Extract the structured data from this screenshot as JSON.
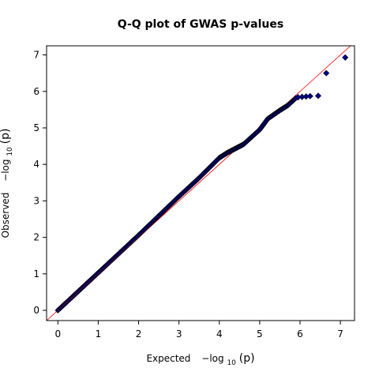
{
  "chart_data": {
    "type": "scatter",
    "title": "Q-Q plot of GWAS p-values",
    "xlabel_main": "Expected",
    "ylabel_main": "Observed",
    "math_prefix": "−log",
    "math_sub": "10",
    "math_arg": "(p)",
    "xlim": [
      -0.28,
      7.35
    ],
    "ylim": [
      -0.28,
      7.25
    ],
    "xticks": [
      0,
      1,
      2,
      3,
      4,
      5,
      6,
      7
    ],
    "yticks": [
      0,
      1,
      2,
      3,
      4,
      5,
      6,
      7
    ],
    "reference_line": {
      "slope": 1,
      "intercept": 0,
      "color": "#ff0000"
    },
    "point_color": "#00008b",
    "point_edge_color": "#000000",
    "curve": [
      [
        0.0,
        0.0
      ],
      [
        1.0,
        1.03
      ],
      [
        2.0,
        2.06
      ],
      [
        3.0,
        3.12
      ],
      [
        3.5,
        3.63
      ],
      [
        4.0,
        4.18
      ],
      [
        4.2,
        4.32
      ],
      [
        4.6,
        4.55
      ],
      [
        5.0,
        4.95
      ],
      [
        5.2,
        5.25
      ],
      [
        5.5,
        5.48
      ],
      [
        5.7,
        5.62
      ],
      [
        5.9,
        5.82
      ]
    ],
    "tail_points": [
      {
        "x": 5.95,
        "y": 5.84
      },
      {
        "x": 6.05,
        "y": 5.85
      },
      {
        "x": 6.15,
        "y": 5.86
      },
      {
        "x": 6.25,
        "y": 5.87
      },
      {
        "x": 6.45,
        "y": 5.88
      },
      {
        "x": 6.65,
        "y": 6.5
      },
      {
        "x": 7.12,
        "y": 6.93
      }
    ],
    "grid": false,
    "legend": "none"
  }
}
